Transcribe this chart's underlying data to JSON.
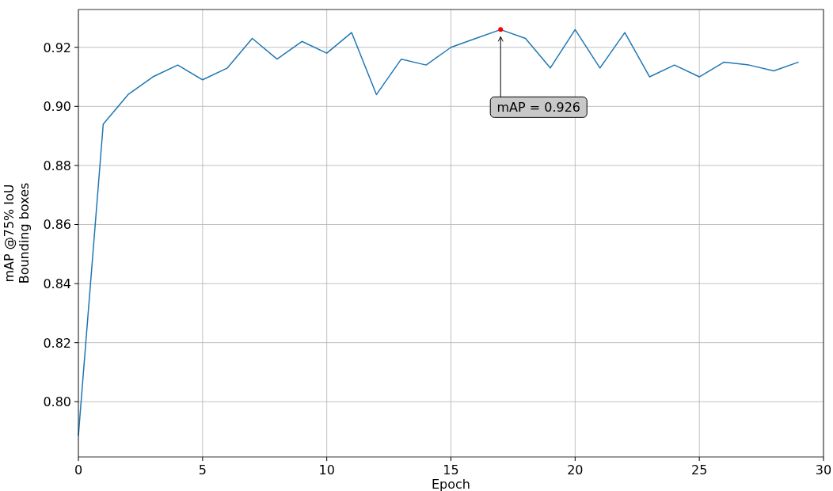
{
  "chart_data": {
    "type": "line",
    "xlabel": "Epoch",
    "ylabel": "mAP @75% IoU\nBounding boxes",
    "series": [
      {
        "color": "#1f77b4",
        "x": [
          0,
          1,
          2,
          3,
          4,
          5,
          6,
          7,
          8,
          9,
          10,
          11,
          12,
          13,
          14,
          15,
          16,
          17,
          18,
          19,
          20,
          21,
          22,
          23,
          24,
          25,
          26,
          27,
          28,
          29
        ],
        "values": [
          0.7885,
          0.894,
          0.904,
          0.91,
          0.914,
          0.909,
          0.913,
          0.923,
          0.916,
          0.922,
          0.918,
          0.925,
          0.904,
          0.916,
          0.914,
          0.92,
          0.923,
          0.926,
          0.923,
          0.913,
          0.926,
          0.913,
          0.925,
          0.91,
          0.914,
          0.91,
          0.915,
          0.914,
          0.912,
          0.915
        ]
      },
      {
        "type": "scatter",
        "color": "#ff0000",
        "x": [
          17
        ],
        "values": [
          0.926
        ],
        "marker": "circle"
      }
    ],
    "annotations": [
      {
        "text": "mAP = 0.926",
        "x": 17,
        "y": 0.926
      }
    ],
    "xlim": [
      0,
      30
    ],
    "xticks": [
      0,
      5,
      10,
      15,
      20,
      25,
      30
    ],
    "ylim": [
      0.7813,
      0.9328
    ],
    "yticks": [
      {
        "value": 0.8,
        "label": "0.80"
      },
      {
        "value": 0.82,
        "label": "0.82"
      },
      {
        "value": 0.84,
        "label": "0.84"
      },
      {
        "value": 0.86,
        "label": "0.86"
      },
      {
        "value": 0.88,
        "label": "0.88"
      },
      {
        "value": 0.9,
        "label": "0.90"
      },
      {
        "value": 0.92,
        "label": "0.92"
      }
    ],
    "grid": true
  }
}
